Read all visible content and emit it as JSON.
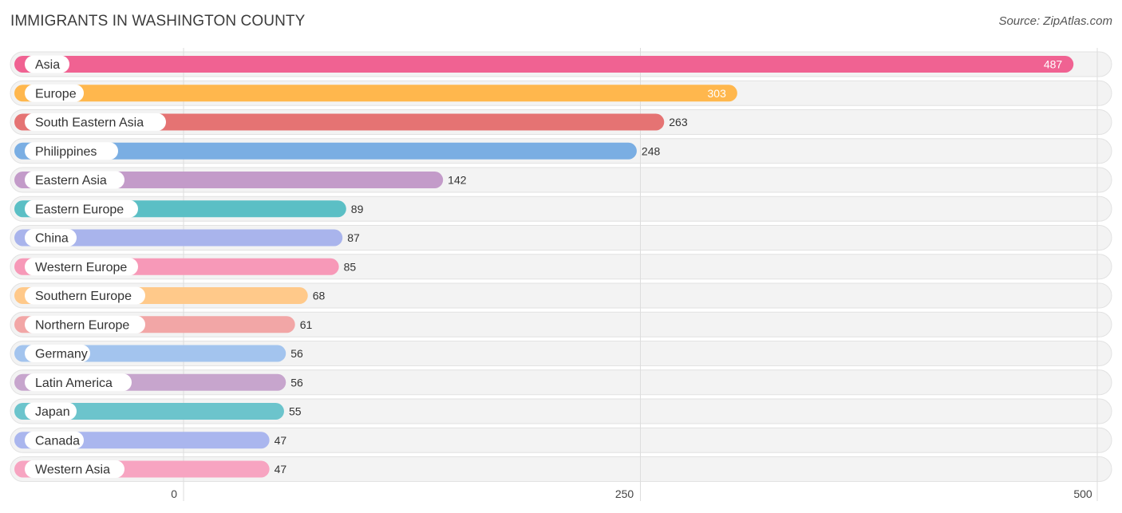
{
  "header": {
    "title": "IMMIGRANTS IN WASHINGTON COUNTY",
    "source": "Source: ZipAtlas.com"
  },
  "chart_data": {
    "type": "bar",
    "orientation": "horizontal",
    "title": "IMMIGRANTS IN WASHINGTON COUNTY",
    "categories": [
      "Asia",
      "Europe",
      "South Eastern Asia",
      "Philippines",
      "Eastern Asia",
      "Eastern Europe",
      "China",
      "Western Europe",
      "Southern Europe",
      "Northern Europe",
      "Germany",
      "Latin America",
      "Japan",
      "Canada",
      "Western Asia"
    ],
    "values": [
      487,
      303,
      263,
      248,
      142,
      89,
      87,
      85,
      68,
      61,
      56,
      56,
      55,
      47,
      47
    ],
    "colors": [
      "#f06292",
      "#ffb74d",
      "#e57373",
      "#7aaee3",
      "#c39bc9",
      "#5bbfc5",
      "#a9b4ec",
      "#f799b8",
      "#ffc98a",
      "#f2a6a6",
      "#a3c4ee",
      "#c7a5cd",
      "#6cc4cc",
      "#aab6ee",
      "#f7a4c1"
    ],
    "xlim": [
      0,
      500
    ],
    "xticks": [
      "0",
      "250",
      "500"
    ],
    "grid": true
  }
}
